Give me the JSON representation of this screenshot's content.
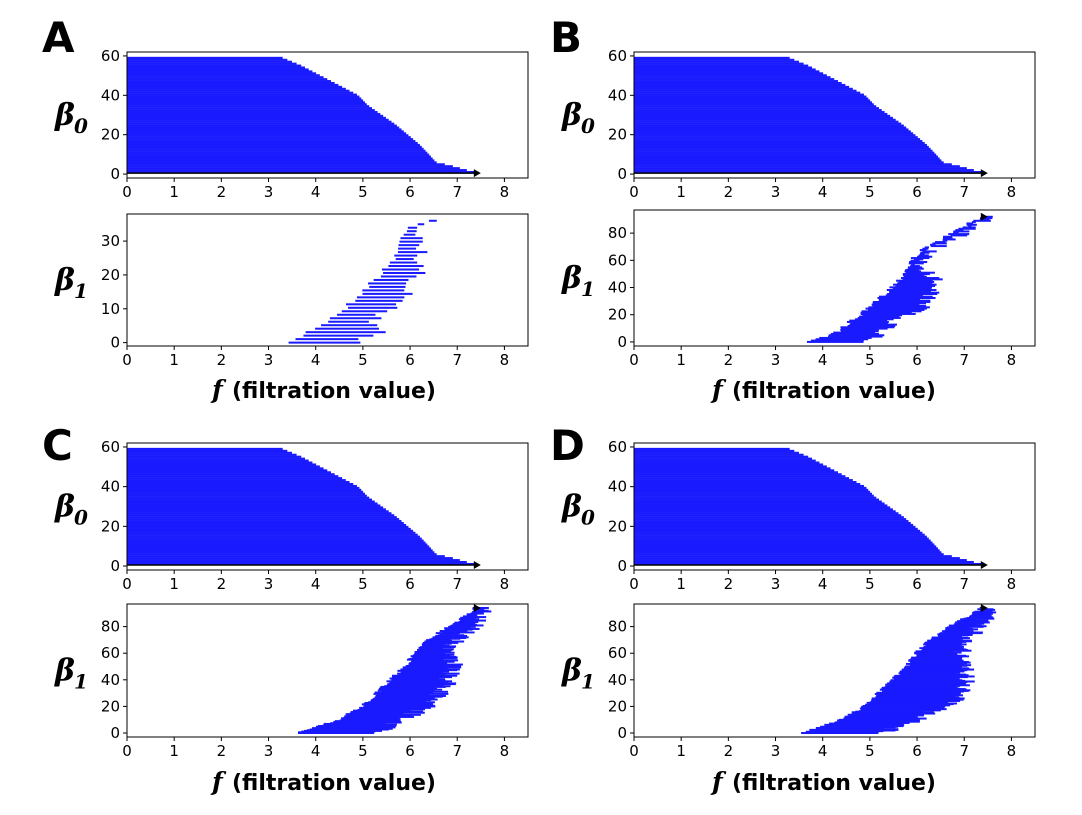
{
  "figure": {
    "xlabel_symbol": "f",
    "xlabel_text": "(filtration value)",
    "colors": {
      "bar": "#1a1aff",
      "axis": "#000000",
      "background": "#ffffff"
    }
  },
  "chart_data": [
    {
      "panel": "A",
      "type": "barcode",
      "subplots": [
        {
          "ylabel": "β",
          "ylabel_sub": "0",
          "xlim": [
            0,
            8.5
          ],
          "ylim": [
            -2,
            62
          ],
          "xticks": [
            0,
            1,
            2,
            3,
            4,
            5,
            6,
            7,
            8
          ],
          "yticks": [
            0,
            20,
            40,
            60
          ],
          "bar_count": 60,
          "bar_start": 0,
          "bar_end_profile": [
            [
              59,
              3.3
            ],
            [
              55,
              3.7
            ],
            [
              50,
              4.1
            ],
            [
              45,
              4.5
            ],
            [
              40,
              4.9
            ],
            [
              35,
              5.1
            ],
            [
              30,
              5.4
            ],
            [
              25,
              5.7
            ],
            [
              20,
              5.95
            ],
            [
              15,
              6.2
            ],
            [
              10,
              6.4
            ],
            [
              6,
              6.55
            ],
            [
              4,
              6.9
            ],
            [
              2,
              7.2
            ],
            [
              1,
              7.4
            ]
          ],
          "infinite_bar": {
            "y": 0.5,
            "start": 0,
            "end": 7.5
          }
        },
        {
          "ylabel": "β",
          "ylabel_sub": "1",
          "xlim": [
            0,
            8.5
          ],
          "ylim": [
            -1,
            38
          ],
          "xticks": [
            0,
            1,
            2,
            3,
            4,
            5,
            6,
            7,
            8
          ],
          "yticks": [
            0,
            10,
            20,
            30
          ],
          "bar_count": 36,
          "bars_profile": [
            [
              0,
              3.5,
              4.8
            ],
            [
              3,
              3.8,
              5.4
            ],
            [
              6,
              4.2,
              5.2
            ],
            [
              10,
              4.6,
              5.6
            ],
            [
              14,
              4.9,
              5.9
            ],
            [
              18,
              5.2,
              6.0
            ],
            [
              22,
              5.5,
              6.3
            ],
            [
              26,
              5.7,
              6.2
            ],
            [
              30,
              5.8,
              6.3
            ],
            [
              34,
              5.9,
              6.1
            ],
            [
              36,
              6.4,
              6.5
            ]
          ],
          "sparse": true
        }
      ]
    },
    {
      "panel": "B",
      "type": "barcode",
      "subplots": [
        {
          "ylabel": "β",
          "ylabel_sub": "0",
          "xlim": [
            0,
            8.5
          ],
          "ylim": [
            -2,
            62
          ],
          "xticks": [
            0,
            1,
            2,
            3,
            4,
            5,
            6,
            7,
            8
          ],
          "yticks": [
            0,
            20,
            40,
            60
          ],
          "bar_count": 60,
          "bar_start": 0,
          "bar_end_profile": [
            [
              59,
              3.3
            ],
            [
              55,
              3.7
            ],
            [
              50,
              4.1
            ],
            [
              45,
              4.5
            ],
            [
              40,
              4.9
            ],
            [
              35,
              5.1
            ],
            [
              30,
              5.4
            ],
            [
              25,
              5.7
            ],
            [
              20,
              5.95
            ],
            [
              15,
              6.2
            ],
            [
              10,
              6.4
            ],
            [
              6,
              6.55
            ],
            [
              4,
              6.9
            ],
            [
              2,
              7.2
            ],
            [
              1,
              7.4
            ]
          ],
          "infinite_bar": {
            "y": 0.5,
            "start": 0,
            "end": 7.5
          }
        },
        {
          "ylabel": "β",
          "ylabel_sub": "1",
          "xlim": [
            0,
            8.5
          ],
          "ylim": [
            -3,
            97
          ],
          "xticks": [
            0,
            1,
            2,
            3,
            4,
            5,
            6,
            7,
            8
          ],
          "yticks": [
            0,
            20,
            40,
            60,
            80
          ],
          "bar_count": 95,
          "bars_profile": [
            [
              0,
              3.6,
              4.9
            ],
            [
              5,
              4.2,
              5.2
            ],
            [
              15,
              4.6,
              5.5
            ],
            [
              25,
              5.0,
              6.1
            ],
            [
              35,
              5.3,
              6.3
            ],
            [
              45,
              5.6,
              6.4
            ],
            [
              55,
              5.8,
              6.1
            ],
            [
              65,
              6.0,
              6.2
            ],
            [
              75,
              6.5,
              6.7
            ],
            [
              85,
              7.0,
              7.3
            ],
            [
              92,
              7.4,
              7.5
            ]
          ],
          "sparse": true,
          "infinite_bar": {
            "y": 92,
            "start": 7.4,
            "end": 7.5
          }
        }
      ]
    },
    {
      "panel": "C",
      "type": "barcode",
      "subplots": [
        {
          "ylabel": "β",
          "ylabel_sub": "0",
          "xlim": [
            0,
            8.5
          ],
          "ylim": [
            -2,
            62
          ],
          "xticks": [
            0,
            1,
            2,
            3,
            4,
            5,
            6,
            7,
            8
          ],
          "yticks": [
            0,
            20,
            40,
            60
          ],
          "bar_count": 60,
          "bar_start": 0,
          "bar_end_profile": [
            [
              59,
              3.3
            ],
            [
              55,
              3.7
            ],
            [
              50,
              4.1
            ],
            [
              45,
              4.5
            ],
            [
              40,
              4.9
            ],
            [
              35,
              5.1
            ],
            [
              30,
              5.4
            ],
            [
              25,
              5.7
            ],
            [
              20,
              5.95
            ],
            [
              15,
              6.2
            ],
            [
              10,
              6.4
            ],
            [
              6,
              6.55
            ],
            [
              4,
              6.9
            ],
            [
              2,
              7.2
            ],
            [
              1,
              7.4
            ]
          ],
          "infinite_bar": {
            "y": 0.5,
            "start": 0,
            "end": 7.5
          }
        },
        {
          "ylabel": "β",
          "ylabel_sub": "1",
          "xlim": [
            0,
            8.5
          ],
          "ylim": [
            -3,
            97
          ],
          "xticks": [
            0,
            1,
            2,
            3,
            4,
            5,
            6,
            7,
            8
          ],
          "yticks": [
            0,
            20,
            40,
            60,
            80
          ],
          "bar_count": 180,
          "bars_profile": [
            [
              0,
              3.6,
              5.2
            ],
            [
              10,
              4.5,
              5.8
            ],
            [
              20,
              5.0,
              6.4
            ],
            [
              30,
              5.3,
              6.6
            ],
            [
              40,
              5.6,
              6.8
            ],
            [
              50,
              5.9,
              6.9
            ],
            [
              60,
              6.1,
              6.8
            ],
            [
              70,
              6.4,
              7.0
            ],
            [
              80,
              6.8,
              7.3
            ],
            [
              90,
              7.3,
              7.5
            ],
            [
              94,
              7.4,
              7.5
            ]
          ],
          "sparse": false,
          "infinite_bar": {
            "y": 94,
            "start": 7.4,
            "end": 7.5
          }
        }
      ]
    },
    {
      "panel": "D",
      "type": "barcode",
      "subplots": [
        {
          "ylabel": "β",
          "ylabel_sub": "0",
          "xlim": [
            0,
            8.5
          ],
          "ylim": [
            -2,
            62
          ],
          "xticks": [
            0,
            1,
            2,
            3,
            4,
            5,
            6,
            7,
            8
          ],
          "yticks": [
            0,
            20,
            40,
            60
          ],
          "bar_count": 60,
          "bar_start": 0,
          "bar_end_profile": [
            [
              59,
              3.3
            ],
            [
              55,
              3.7
            ],
            [
              50,
              4.1
            ],
            [
              45,
              4.5
            ],
            [
              40,
              4.9
            ],
            [
              35,
              5.1
            ],
            [
              30,
              5.4
            ],
            [
              25,
              5.7
            ],
            [
              20,
              5.95
            ],
            [
              15,
              6.2
            ],
            [
              10,
              6.4
            ],
            [
              6,
              6.55
            ],
            [
              4,
              6.9
            ],
            [
              2,
              7.2
            ],
            [
              1,
              7.4
            ]
          ],
          "infinite_bar": {
            "y": 0.5,
            "start": 0,
            "end": 7.5
          }
        },
        {
          "ylabel": "β",
          "ylabel_sub": "1",
          "xlim": [
            0,
            8.5
          ],
          "ylim": [
            -3,
            97
          ],
          "xticks": [
            0,
            1,
            2,
            3,
            4,
            5,
            6,
            7,
            8
          ],
          "yticks": [
            0,
            20,
            40,
            60,
            80
          ],
          "bar_count": 200,
          "bars_profile": [
            [
              0,
              3.6,
              5.3
            ],
            [
              10,
              4.4,
              5.9
            ],
            [
              20,
              4.9,
              6.6
            ],
            [
              30,
              5.2,
              6.9
            ],
            [
              40,
              5.5,
              7.0
            ],
            [
              50,
              5.8,
              7.0
            ],
            [
              60,
              6.0,
              6.9
            ],
            [
              70,
              6.3,
              7.0
            ],
            [
              80,
              6.7,
              7.3
            ],
            [
              90,
              7.2,
              7.5
            ],
            [
              94,
              7.4,
              7.5
            ]
          ],
          "sparse": false,
          "infinite_bar": {
            "y": 94,
            "start": 7.4,
            "end": 7.5
          }
        }
      ]
    }
  ]
}
